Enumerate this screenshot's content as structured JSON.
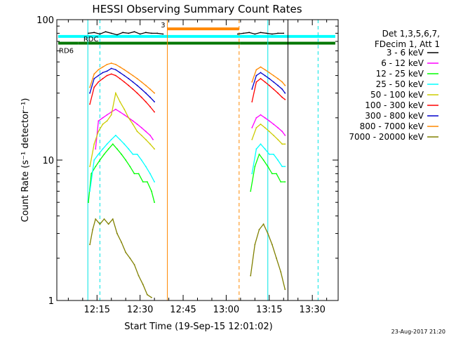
{
  "chart_data": {
    "type": "line",
    "title": "HESSI Observing Summary Count Rates",
    "xlabel": "Start Time (19-Sep-15 12:01:02)",
    "ylabel": "Count Rate (s⁻¹ detector⁻¹)",
    "x_unit": "minutes after 12:00",
    "xlim": [
      1.0,
      99.0
    ],
    "ylim": [
      1,
      100
    ],
    "yscale": "log",
    "x_ticks": [
      {
        "x": 15,
        "label": "12:15"
      },
      {
        "x": 30,
        "label": "12:30"
      },
      {
        "x": 45,
        "label": "12:45"
      },
      {
        "x": 60,
        "label": "13:00"
      },
      {
        "x": 75,
        "label": "13:15"
      },
      {
        "x": 90,
        "label": "13:30"
      }
    ],
    "y_ticks": [
      {
        "y": 1,
        "label": "1"
      },
      {
        "y": 10,
        "label": "10"
      },
      {
        "y": 100,
        "label": "100"
      }
    ],
    "legend_header": [
      "Det 1,3,5,6,7,",
      "FDecim 1, Att 1"
    ],
    "legend_position": "right, outside plot",
    "footer_date": "23-Aug-2017 21:20",
    "series": [
      {
        "name": "3 - 6 keV",
        "color": "#000000",
        "points": [
          [
            12.0,
            80
          ],
          [
            14.0,
            81
          ],
          [
            16.0,
            79
          ],
          [
            18.0,
            82
          ],
          [
            20.0,
            80
          ],
          [
            22.0,
            78
          ],
          [
            24.0,
            81
          ],
          [
            26.0,
            80
          ],
          [
            28.0,
            82
          ],
          [
            30.0,
            79
          ],
          [
            32.0,
            81
          ],
          [
            34.0,
            80
          ],
          [
            36.0,
            80
          ],
          [
            38.0,
            79
          ],
          [
            64.0,
            79
          ],
          [
            66.0,
            80
          ],
          [
            68.0,
            81
          ],
          [
            70.0,
            79
          ],
          [
            72.0,
            81
          ],
          [
            74.0,
            80
          ],
          [
            76.0,
            79
          ],
          [
            78.0,
            80
          ],
          [
            80.0,
            80
          ]
        ]
      },
      {
        "name": "6 - 12 keV",
        "color": "#ff00ff",
        "points": [
          [
            14.5,
            12
          ],
          [
            15.5,
            19
          ],
          [
            17.0,
            20
          ],
          [
            18.5,
            21
          ],
          [
            20.0,
            22
          ],
          [
            21.5,
            23
          ],
          [
            23.0,
            22
          ],
          [
            24.5,
            21
          ],
          [
            26.0,
            20
          ],
          [
            27.5,
            19
          ],
          [
            29.0,
            18
          ],
          [
            30.5,
            17
          ],
          [
            32.0,
            16
          ],
          [
            33.5,
            15
          ],
          [
            34.5,
            14
          ],
          [
            69.0,
            17
          ],
          [
            70.5,
            20
          ],
          [
            72.0,
            21
          ],
          [
            73.5,
            20
          ],
          [
            75.0,
            19
          ],
          [
            76.5,
            18
          ],
          [
            78.0,
            17
          ],
          [
            79.5,
            16
          ],
          [
            80.5,
            15
          ]
        ]
      },
      {
        "name": "12 - 25 keV",
        "color": "#00ff00",
        "points": [
          [
            12.0,
            5
          ],
          [
            13.0,
            8
          ],
          [
            14.5,
            9
          ],
          [
            16.0,
            10
          ],
          [
            17.5,
            11
          ],
          [
            19.0,
            12
          ],
          [
            20.5,
            13
          ],
          [
            22.0,
            12
          ],
          [
            23.5,
            11
          ],
          [
            25.0,
            10
          ],
          [
            26.5,
            9
          ],
          [
            28.0,
            8
          ],
          [
            29.5,
            8
          ],
          [
            31.0,
            7
          ],
          [
            32.5,
            7
          ],
          [
            34.0,
            6
          ],
          [
            35.0,
            5
          ],
          [
            68.5,
            6
          ],
          [
            70.0,
            9
          ],
          [
            71.5,
            11
          ],
          [
            73.0,
            10
          ],
          [
            74.5,
            9
          ],
          [
            76.0,
            8
          ],
          [
            77.5,
            8
          ],
          [
            79.0,
            7
          ],
          [
            80.5,
            7
          ]
        ]
      },
      {
        "name": "25 - 50 keV",
        "color": "#00ffff",
        "points": [
          [
            12.5,
            6
          ],
          [
            14.0,
            10
          ],
          [
            15.5,
            11
          ],
          [
            17.0,
            12
          ],
          [
            18.5,
            13
          ],
          [
            20.0,
            14
          ],
          [
            21.5,
            15
          ],
          [
            23.0,
            14
          ],
          [
            24.5,
            13
          ],
          [
            26.0,
            12
          ],
          [
            27.5,
            11
          ],
          [
            29.0,
            11
          ],
          [
            30.5,
            10
          ],
          [
            32.0,
            9
          ],
          [
            33.5,
            8
          ],
          [
            35.0,
            7
          ],
          [
            69.0,
            8
          ],
          [
            70.5,
            12
          ],
          [
            72.0,
            13
          ],
          [
            73.5,
            12
          ],
          [
            75.0,
            11
          ],
          [
            76.5,
            11
          ],
          [
            78.0,
            10
          ],
          [
            79.5,
            9
          ],
          [
            80.5,
            9
          ]
        ]
      },
      {
        "name": "50 - 100 keV",
        "color": "#cccc00",
        "points": [
          [
            12.5,
            9
          ],
          [
            14.0,
            13
          ],
          [
            15.5,
            16
          ],
          [
            17.0,
            18
          ],
          [
            18.5,
            19
          ],
          [
            20.0,
            21
          ],
          [
            21.5,
            30
          ],
          [
            23.0,
            26
          ],
          [
            24.5,
            23
          ],
          [
            26.0,
            20
          ],
          [
            27.5,
            18
          ],
          [
            29.0,
            16
          ],
          [
            30.5,
            15
          ],
          [
            32.0,
            14
          ],
          [
            33.5,
            13
          ],
          [
            35.0,
            12
          ],
          [
            69.0,
            14
          ],
          [
            70.5,
            17
          ],
          [
            72.0,
            18
          ],
          [
            73.5,
            17
          ],
          [
            75.0,
            16
          ],
          [
            76.5,
            15
          ],
          [
            78.0,
            14
          ],
          [
            79.5,
            13
          ],
          [
            80.5,
            13
          ]
        ]
      },
      {
        "name": "100 - 300 keV",
        "color": "#ff0000",
        "points": [
          [
            12.5,
            25
          ],
          [
            14.0,
            33
          ],
          [
            15.5,
            36
          ],
          [
            17.0,
            38
          ],
          [
            18.5,
            40
          ],
          [
            20.0,
            41
          ],
          [
            21.5,
            40
          ],
          [
            23.0,
            38
          ],
          [
            24.5,
            36
          ],
          [
            26.0,
            34
          ],
          [
            27.5,
            32
          ],
          [
            29.0,
            30
          ],
          [
            30.5,
            28
          ],
          [
            32.0,
            26
          ],
          [
            33.5,
            24
          ],
          [
            35.0,
            22
          ],
          [
            69.0,
            26
          ],
          [
            70.5,
            36
          ],
          [
            72.0,
            38
          ],
          [
            73.5,
            36
          ],
          [
            75.0,
            34
          ],
          [
            76.5,
            32
          ],
          [
            78.0,
            30
          ],
          [
            79.5,
            28
          ],
          [
            80.5,
            27
          ]
        ]
      },
      {
        "name": "300 - 800 keV",
        "color": "#0000cc",
        "points": [
          [
            12.5,
            30
          ],
          [
            14.0,
            38
          ],
          [
            15.5,
            40
          ],
          [
            17.0,
            42
          ],
          [
            18.5,
            43
          ],
          [
            20.0,
            45
          ],
          [
            21.5,
            44
          ],
          [
            23.0,
            42
          ],
          [
            24.5,
            40
          ],
          [
            26.0,
            38
          ],
          [
            27.5,
            36
          ],
          [
            29.0,
            34
          ],
          [
            30.5,
            32
          ],
          [
            32.0,
            30
          ],
          [
            33.5,
            28
          ],
          [
            35.0,
            26
          ],
          [
            69.0,
            32
          ],
          [
            70.5,
            40
          ],
          [
            72.0,
            42
          ],
          [
            73.5,
            40
          ],
          [
            75.0,
            38
          ],
          [
            76.5,
            36
          ],
          [
            78.0,
            34
          ],
          [
            79.5,
            32
          ],
          [
            80.5,
            30
          ]
        ]
      },
      {
        "name": "800 - 7000 keV",
        "color": "#ff8800",
        "points": [
          [
            12.5,
            33
          ],
          [
            14.0,
            41
          ],
          [
            15.5,
            44
          ],
          [
            17.0,
            46
          ],
          [
            18.5,
            48
          ],
          [
            20.0,
            49
          ],
          [
            21.5,
            48
          ],
          [
            23.0,
            46
          ],
          [
            24.5,
            44
          ],
          [
            26.0,
            42
          ],
          [
            27.5,
            40
          ],
          [
            29.0,
            38
          ],
          [
            30.5,
            36
          ],
          [
            32.0,
            34
          ],
          [
            33.5,
            32
          ],
          [
            35.0,
            30
          ],
          [
            69.0,
            36
          ],
          [
            70.5,
            44
          ],
          [
            72.0,
            46
          ],
          [
            73.5,
            44
          ],
          [
            75.0,
            42
          ],
          [
            76.5,
            40
          ],
          [
            78.0,
            38
          ],
          [
            79.5,
            36
          ],
          [
            80.5,
            34
          ]
        ]
      },
      {
        "name": "7000 - 20000 keV",
        "color": "#808000",
        "points": [
          [
            12.5,
            2.5
          ],
          [
            13.5,
            3.2
          ],
          [
            14.5,
            3.8
          ],
          [
            16.0,
            3.5
          ],
          [
            17.5,
            3.8
          ],
          [
            19.0,
            3.5
          ],
          [
            20.5,
            3.8
          ],
          [
            22.0,
            3.0
          ],
          [
            23.5,
            2.6
          ],
          [
            25.0,
            2.2
          ],
          [
            26.5,
            2.0
          ],
          [
            28.0,
            1.8
          ],
          [
            29.5,
            1.5
          ],
          [
            31.0,
            1.3
          ],
          [
            32.5,
            1.1
          ],
          [
            34.0,
            1.05
          ],
          [
            68.5,
            1.5
          ],
          [
            70.0,
            2.5
          ],
          [
            71.5,
            3.2
          ],
          [
            73.0,
            3.5
          ],
          [
            74.5,
            3.0
          ],
          [
            76.0,
            2.5
          ],
          [
            77.5,
            2.0
          ],
          [
            79.0,
            1.6
          ],
          [
            80.5,
            1.2
          ]
        ]
      }
    ],
    "overlays": {
      "cyan_bars": [
        {
          "x0": 1.5,
          "x1": 98,
          "y": 76
        }
      ],
      "dark_green_bars": [
        {
          "x0": 1.5,
          "x1": 8.5,
          "y": 68
        },
        {
          "x0": 8.5,
          "x1": 65,
          "y": 68
        },
        {
          "x0": 65,
          "x1": 98,
          "y": 68
        }
      ],
      "orange_bars": [
        {
          "x0": 39.5,
          "x1": 64.5,
          "y": 86
        }
      ],
      "bar_labels": [
        {
          "text": "RDC",
          "x": 10,
          "y": 70,
          "color": "#000000"
        },
        {
          "text": "RD6",
          "x": 1.5,
          "y": 58,
          "color": "#006600"
        },
        {
          "text": "3",
          "x": 37,
          "y": 88,
          "color": "#ff8800"
        }
      ],
      "vlines_solid": [
        {
          "x": 11.8,
          "color": "#00e5e5"
        },
        {
          "x": 74.5,
          "color": "#00e5e5"
        },
        {
          "x": 81.5,
          "color": "#000000"
        }
      ],
      "vlines_dashed": [
        {
          "x": 16.0,
          "color": "#00e5e5"
        },
        {
          "x": 92.0,
          "color": "#00e5e5"
        },
        {
          "x": 64.5,
          "color": "#ff8800"
        }
      ],
      "vlines_orange_solid": [
        {
          "x": 39.5,
          "color": "#ff8800"
        }
      ]
    }
  }
}
